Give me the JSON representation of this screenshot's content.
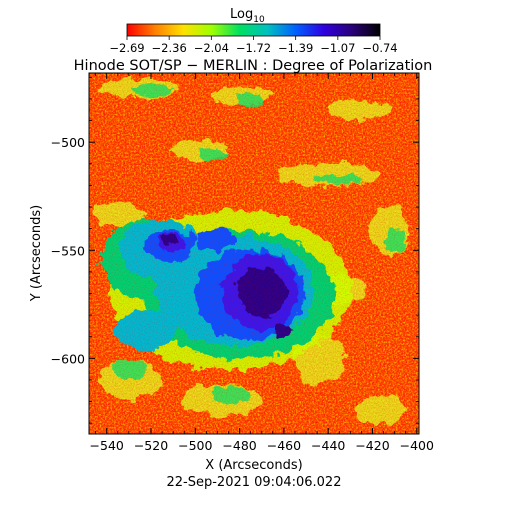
{
  "colorbar": {
    "title_main": "Log",
    "title_sub": "10",
    "tick_labels": [
      "−2.69",
      "−2.36",
      "−2.04",
      "−1.72",
      "−1.39",
      "−1.07",
      "−0.74"
    ],
    "stops": [
      "#ff0000",
      "#ff8000",
      "#ffe000",
      "#a0ff00",
      "#00e060",
      "#00c0c0",
      "#0060ff",
      "#3000e0",
      "#2a007a",
      "#000000"
    ]
  },
  "title": "Hinode SOT/SP − MERLIN : Degree of Polarization",
  "x_axis": {
    "label": "X (Arcseconds)",
    "ticks": [
      {
        "value": -540,
        "label": "−540"
      },
      {
        "value": -520,
        "label": "−520"
      },
      {
        "value": -500,
        "label": "−500"
      },
      {
        "value": -480,
        "label": "−480"
      },
      {
        "value": -460,
        "label": "−460"
      },
      {
        "value": -440,
        "label": "−440"
      },
      {
        "value": -420,
        "label": "−420"
      },
      {
        "value": -400,
        "label": "−400"
      }
    ],
    "range": [
      -548,
      -399
    ]
  },
  "y_axis": {
    "label": "Y (Arcseconds)",
    "ticks": [
      {
        "value": -500,
        "label": "−500"
      },
      {
        "value": -550,
        "label": "−550"
      },
      {
        "value": -600,
        "label": "−600"
      }
    ],
    "range": [
      -635,
      -468
    ]
  },
  "timestamp": "22-Sep-2021 09:04:06.022",
  "colors": {
    "background": "#ffffff",
    "axis": "#000000",
    "map_base": "#ff3a00"
  }
}
